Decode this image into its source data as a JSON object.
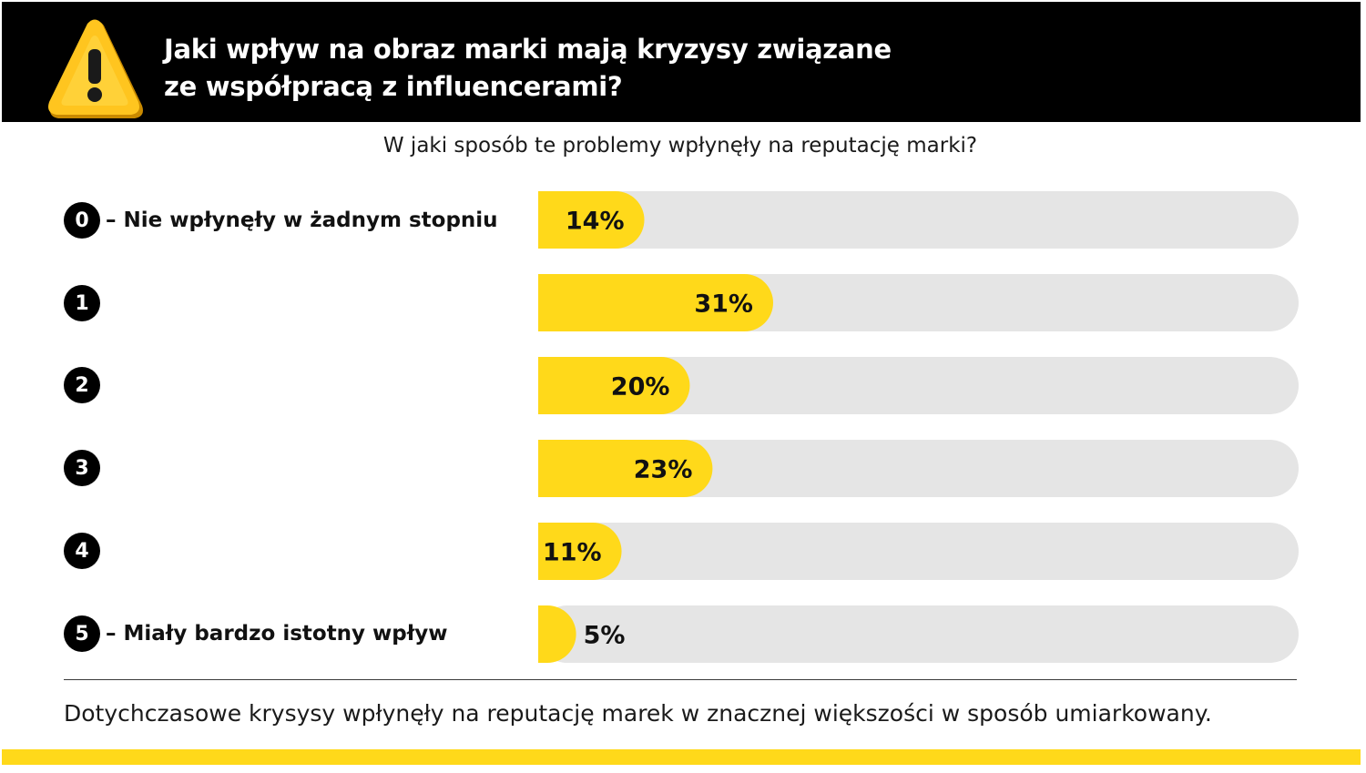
{
  "header": {
    "title_line1": "Jaki wpływ na obraz marki mają kryzysy związane",
    "title_line2": "ze współpracą z influencerami?",
    "icon": "warning-triangle-icon"
  },
  "subtitle": "W jaki sposób te problemy wpłynęły na reputację marki?",
  "rows": [
    {
      "number": "0",
      "text": "– Nie wpłynęły w żadnym stopniu"
    },
    {
      "number": "1",
      "text": ""
    },
    {
      "number": "2",
      "text": ""
    },
    {
      "number": "3",
      "text": ""
    },
    {
      "number": "4",
      "text": ""
    },
    {
      "number": "5",
      "text": "– Miały bardzo istotny wpływ"
    }
  ],
  "chart_data": {
    "type": "bar",
    "orientation": "horizontal",
    "categories": [
      "0",
      "1",
      "2",
      "3",
      "4",
      "5"
    ],
    "values": [
      14,
      31,
      20,
      23,
      11,
      5
    ],
    "value_labels": [
      "14%",
      "31%",
      "20%",
      "23%",
      "11%",
      "5%"
    ],
    "unit": "%",
    "xlim": [
      0,
      100
    ],
    "grid": false
  },
  "footnote": "Dotychczasowe krysysy wpłynęły na reputację marek w znacznej większości w sposób umiarkowany.",
  "colors": {
    "header_bg": "#000000",
    "accent": "#FFD91A",
    "track": "#E5E5E5",
    "text": "#111111"
  }
}
